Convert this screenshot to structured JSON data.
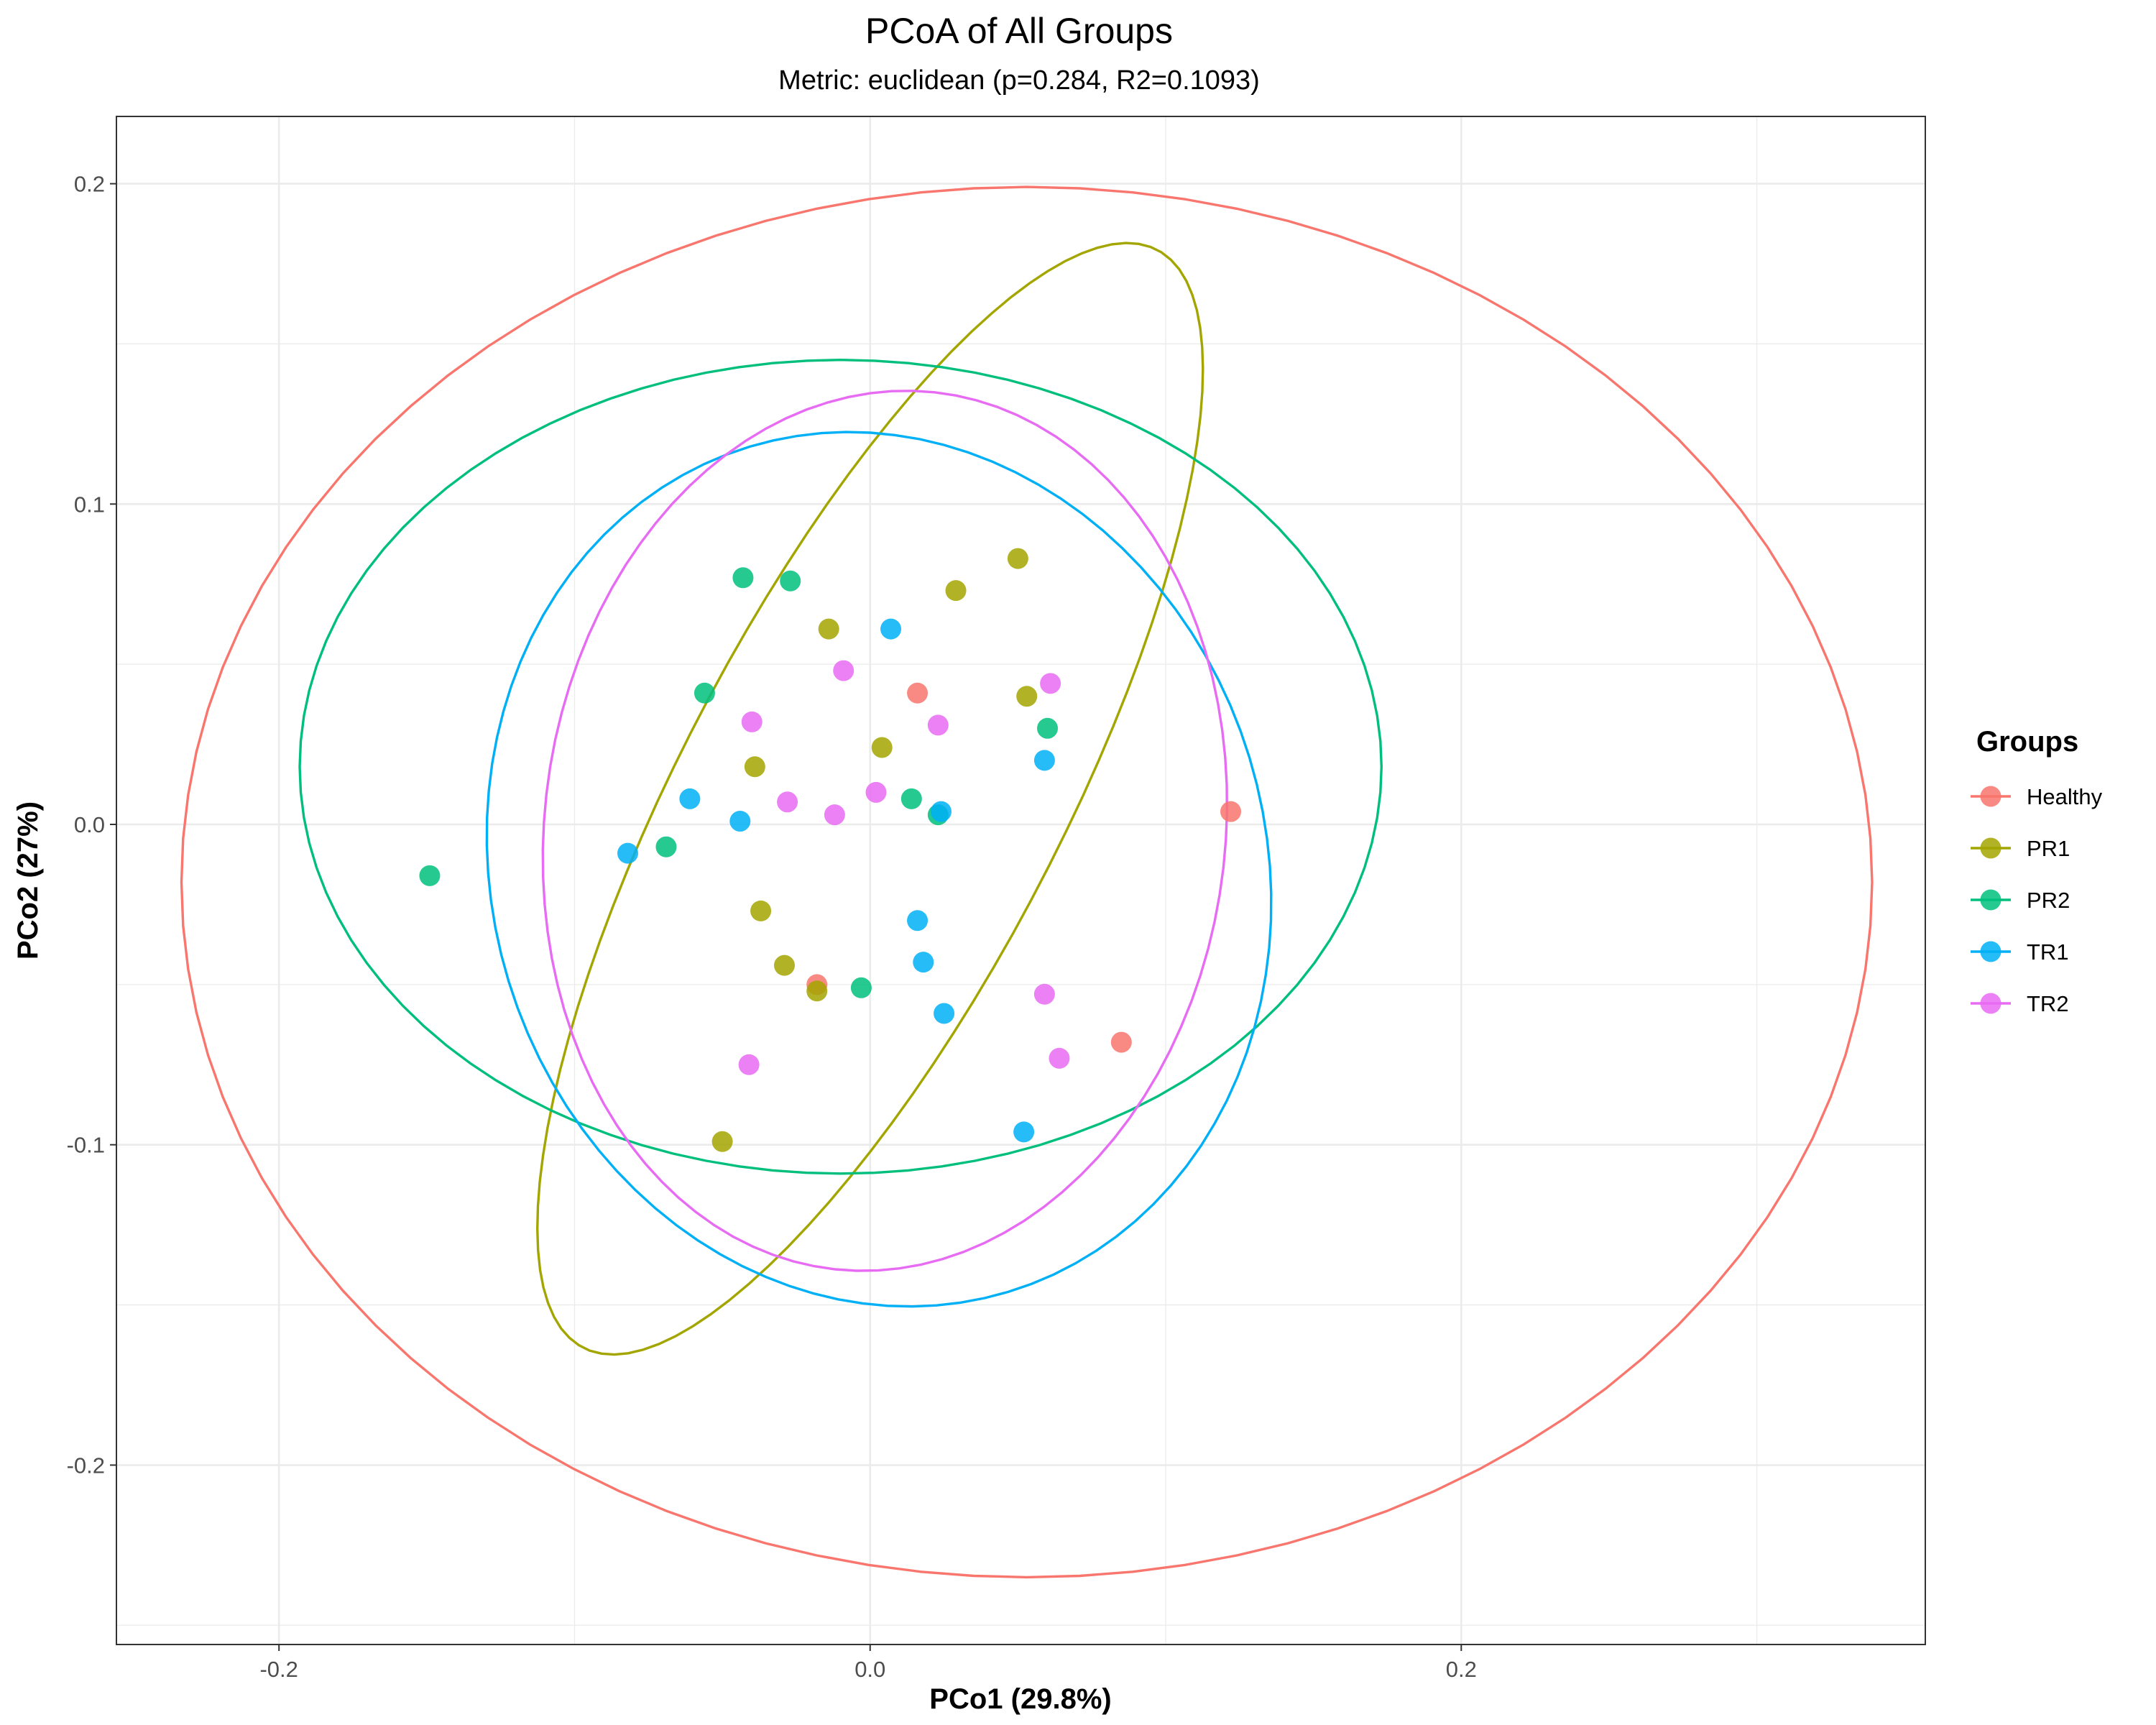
{
  "chart_data": {
    "type": "scatter",
    "title": "PCoA of All Groups",
    "subtitle": "Metric: euclidean (p=0.284, R2=0.1093)",
    "xlabel": "PCo1 (29.8%)",
    "ylabel": "PCo2 (27%)",
    "xlim": [
      -0.255,
      0.357
    ],
    "ylim": [
      -0.256,
      0.221
    ],
    "xticks": [
      -0.2,
      0.0,
      0.2
    ],
    "xtick_labels": [
      "-0.2",
      "0.0",
      "0.2"
    ],
    "yticks": [
      -0.2,
      -0.1,
      0.0,
      0.1,
      0.2
    ],
    "ytick_labels": [
      "-0.2",
      "-0.1",
      "0.0",
      "0.1",
      "0.2"
    ],
    "grid": true,
    "legend_title": "Groups",
    "legend_position": "right",
    "series": [
      {
        "name": "Healthy",
        "color": "#F8766D",
        "points": [
          [
            0.016,
            0.041
          ],
          [
            0.122,
            0.004
          ],
          [
            -0.018,
            -0.05
          ],
          [
            0.085,
            -0.068
          ]
        ],
        "ellipse": {
          "cx": 0.053,
          "cy": -0.018,
          "a": 0.286,
          "b": 0.217,
          "angle": 0
        }
      },
      {
        "name": "PR1",
        "color": "#A3A500",
        "points": [
          [
            0.05,
            0.083
          ],
          [
            0.029,
            0.073
          ],
          [
            -0.014,
            0.061
          ],
          [
            0.053,
            0.04
          ],
          [
            0.004,
            0.024
          ],
          [
            -0.039,
            0.018
          ],
          [
            -0.037,
            -0.027
          ],
          [
            -0.029,
            -0.044
          ],
          [
            -0.018,
            -0.052
          ],
          [
            -0.05,
            -0.099
          ]
        ],
        "ellipse": {
          "cx": 0.0,
          "cy": 0.008,
          "a": 0.197,
          "b": 0.063,
          "angle": 60
        }
      },
      {
        "name": "PR2",
        "color": "#00BF7D",
        "points": [
          [
            -0.043,
            0.077
          ],
          [
            -0.027,
            0.076
          ],
          [
            -0.056,
            0.041
          ],
          [
            0.06,
            0.03
          ],
          [
            0.014,
            0.008
          ],
          [
            0.023,
            0.003
          ],
          [
            -0.069,
            -0.007
          ],
          [
            -0.149,
            -0.016
          ],
          [
            -0.003,
            -0.051
          ]
        ],
        "ellipse": {
          "cx": -0.01,
          "cy": 0.018,
          "a": 0.183,
          "b": 0.127,
          "angle": 0
        }
      },
      {
        "name": "TR1",
        "color": "#00B0F6",
        "points": [
          [
            0.007,
            0.061
          ],
          [
            0.059,
            0.02
          ],
          [
            -0.061,
            0.008
          ],
          [
            -0.044,
            0.001
          ],
          [
            0.024,
            0.004
          ],
          [
            -0.082,
            -0.009
          ],
          [
            0.016,
            -0.03
          ],
          [
            0.018,
            -0.043
          ],
          [
            0.025,
            -0.059
          ],
          [
            0.052,
            -0.096
          ]
        ],
        "ellipse": {
          "cx": 0.003,
          "cy": -0.014,
          "a": 0.14,
          "b": 0.129,
          "angle": -55
        }
      },
      {
        "name": "TR2",
        "color": "#E76BF3",
        "points": [
          [
            -0.009,
            0.048
          ],
          [
            0.061,
            0.044
          ],
          [
            -0.04,
            0.032
          ],
          [
            0.023,
            0.031
          ],
          [
            0.002,
            0.01
          ],
          [
            -0.028,
            0.007
          ],
          [
            -0.012,
            0.003
          ],
          [
            0.059,
            -0.053
          ],
          [
            -0.041,
            -0.075
          ],
          [
            0.064,
            -0.073
          ]
        ],
        "ellipse": {
          "cx": 0.005,
          "cy": -0.002,
          "a": 0.138,
          "b": 0.115,
          "angle": 80
        }
      }
    ]
  }
}
